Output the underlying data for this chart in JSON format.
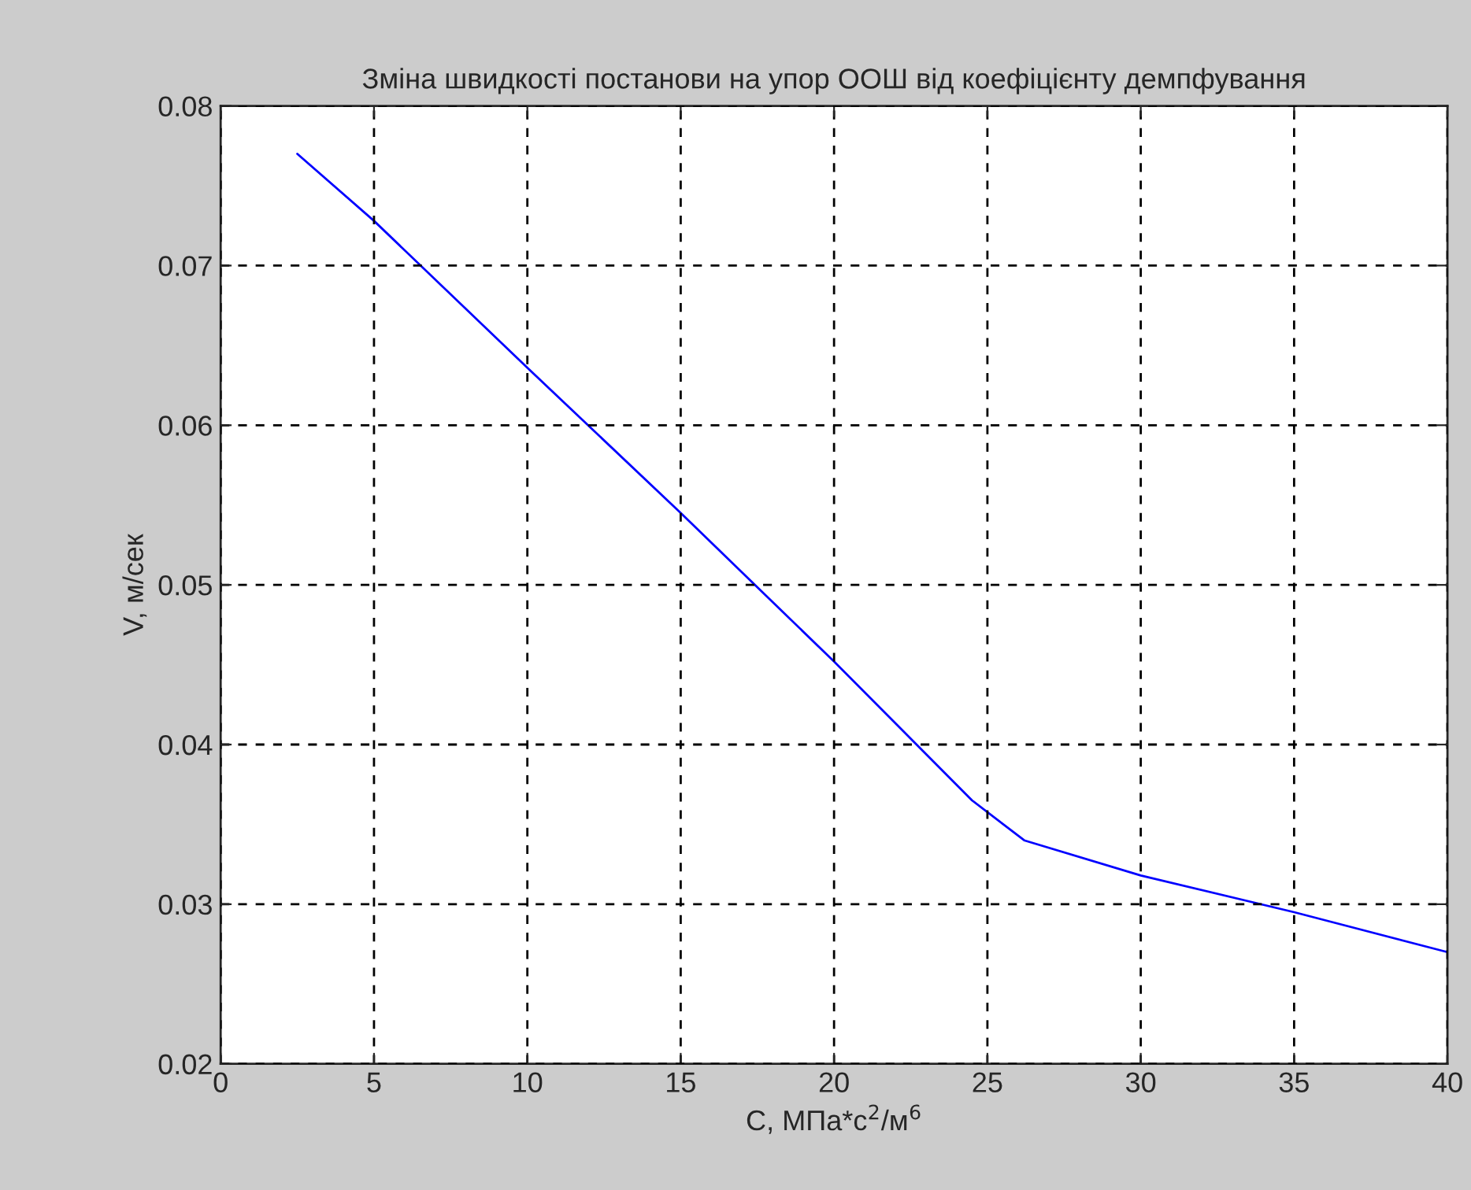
{
  "chart_data": {
    "type": "line",
    "title": "Зміна швидкості постанови на упор ООШ від коефіцієнту демпфування",
    "xlabel": "C, МПа*с$^{2}$/м$^{6}$",
    "ylabel": "V, м/сек",
    "series": [
      {
        "color": "#0000ff",
        "x": [
          2.5,
          5,
          10,
          15,
          20,
          24.5,
          26.2,
          30,
          35,
          40
        ],
        "values": [
          0.077,
          0.0728,
          0.0636,
          0.0545,
          0.0452,
          0.0365,
          0.034,
          0.0318,
          0.0295,
          0.027
        ]
      }
    ],
    "xlim": [
      0,
      40
    ],
    "xticks": [
      0,
      5,
      10,
      15,
      20,
      25,
      30,
      35,
      40
    ],
    "ylim": [
      0.02,
      0.08
    ],
    "yticks": [
      0.02,
      0.03,
      0.04,
      0.05,
      0.06,
      0.07,
      0.08
    ],
    "grid": true,
    "line_style": "solid",
    "marker": "none"
  }
}
